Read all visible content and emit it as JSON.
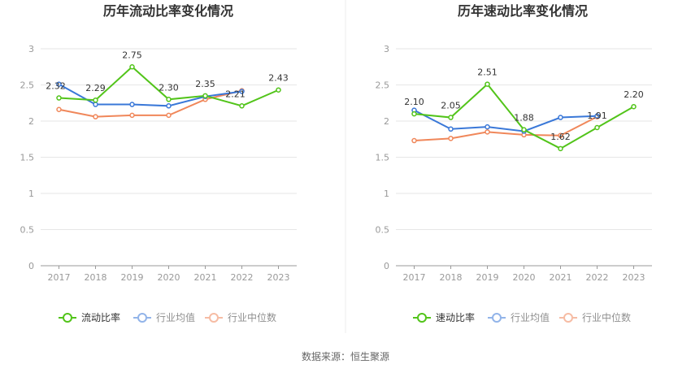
{
  "footer": "数据来源：恒生聚源",
  "colors": {
    "company": "#52c41a",
    "industry_avg": "#3a78d8",
    "industry_median": "#f0875a",
    "grid": "#e6e6e6",
    "axis": "#999999"
  },
  "chart_data": [
    {
      "type": "line",
      "title": "历年流动比率变化情况",
      "categories": [
        "2017",
        "2018",
        "2019",
        "2020",
        "2021",
        "2022",
        "2023"
      ],
      "ylim": [
        0,
        3
      ],
      "yticks": [
        "0",
        "0.5",
        "1",
        "1.5",
        "2",
        "2.5",
        "3"
      ],
      "grid": true,
      "legend_position": "bottom",
      "series": [
        {
          "name": "流动比率",
          "color_key": "company",
          "values": [
            2.32,
            2.29,
            2.75,
            2.3,
            2.35,
            2.21,
            2.43
          ],
          "labels": [
            "2.32",
            "2.29",
            "2.75",
            "2.30",
            "2.35",
            "2.21",
            "2.43"
          ]
        },
        {
          "name": "行业均值",
          "color_key": "industry_avg",
          "values": [
            2.51,
            2.23,
            2.23,
            2.21,
            2.34,
            2.41,
            null
          ]
        },
        {
          "name": "行业中位数",
          "color_key": "industry_median",
          "values": [
            2.16,
            2.06,
            2.08,
            2.08,
            2.3,
            2.42,
            null
          ]
        }
      ]
    },
    {
      "type": "line",
      "title": "历年速动比率变化情况",
      "categories": [
        "2017",
        "2018",
        "2019",
        "2020",
        "2021",
        "2022",
        "2023"
      ],
      "ylim": [
        0,
        3
      ],
      "yticks": [
        "0",
        "0.5",
        "1",
        "1.5",
        "2",
        "2.5",
        "3"
      ],
      "grid": true,
      "legend_position": "bottom",
      "series": [
        {
          "name": "速动比率",
          "color_key": "company",
          "values": [
            2.1,
            2.05,
            2.51,
            1.88,
            1.62,
            1.91,
            2.2
          ],
          "labels": [
            "2.10",
            "2.05",
            "2.51",
            "1.88",
            "1.62",
            "1.91",
            "2.20"
          ]
        },
        {
          "name": "行业均值",
          "color_key": "industry_avg",
          "values": [
            2.15,
            1.89,
            1.92,
            1.86,
            2.05,
            2.07,
            null
          ]
        },
        {
          "name": "行业中位数",
          "color_key": "industry_median",
          "values": [
            1.73,
            1.76,
            1.85,
            1.81,
            1.8,
            2.06,
            null
          ]
        }
      ]
    }
  ]
}
